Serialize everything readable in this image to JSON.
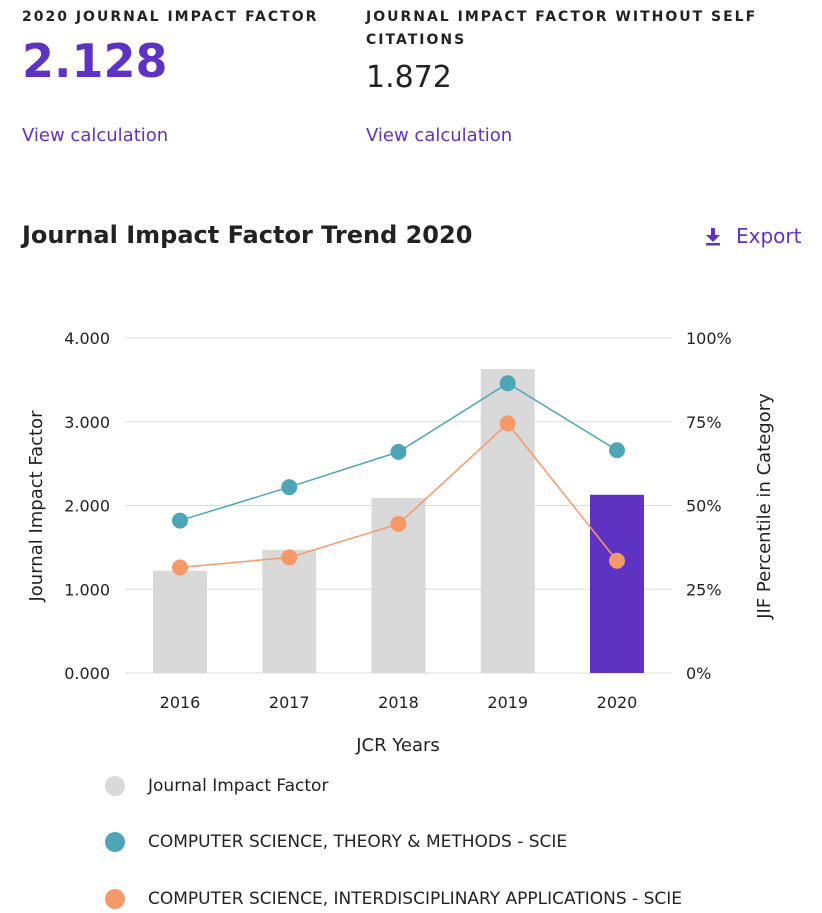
{
  "metrics": {
    "jif": {
      "label": "2020 JOURNAL IMPACT FACTOR",
      "value": "2.128",
      "link": "View calculation"
    },
    "jif_no_self": {
      "label_line1": "JOURNAL IMPACT FACTOR WITHOUT SELF",
      "label_line2": "CITATIONS",
      "value": "1.872",
      "link": "View calculation"
    }
  },
  "trend": {
    "title": "Journal Impact Factor Trend 2020",
    "export_label": "Export",
    "export_icon": "download-icon"
  },
  "colors": {
    "accent": "#5f33c2",
    "bar_default": "#d9d9d9",
    "bar_highlight": "#5f33c2",
    "series_theory": "#4fa5b8",
    "series_interdisciplinary": "#f5996b",
    "grid": "#dddddd"
  },
  "chart_data": {
    "type": "bar",
    "categories": [
      "2016",
      "2017",
      "2018",
      "2019",
      "2020"
    ],
    "xlabel": "JCR Years",
    "ylabel": "Journal Impact Factor",
    "ylabel_right": "JIF Percentile in Category",
    "ylim": [
      0,
      4
    ],
    "yticks": [
      "0.000",
      "1.000",
      "2.000",
      "3.000",
      "4.000"
    ],
    "ylim_right": [
      0,
      100
    ],
    "yticks_right": [
      "0%",
      "25%",
      "50%",
      "75%",
      "100%"
    ],
    "bars": {
      "name": "Journal Impact Factor",
      "values": [
        1.22,
        1.47,
        2.09,
        3.63,
        2.128
      ],
      "highlight_index": 4
    },
    "series": [
      {
        "name": "COMPUTER SCIENCE, THEORY & METHODS - SCIE",
        "type": "line",
        "axis": "right",
        "values": [
          45.5,
          55.5,
          66,
          86.5,
          66.5
        ]
      },
      {
        "name": "COMPUTER SCIENCE, INTERDISCIPLINARY APPLICATIONS - SCIE",
        "type": "line",
        "axis": "right",
        "values": [
          31.5,
          34.5,
          44.5,
          74.5,
          33.5
        ]
      }
    ],
    "grid": true,
    "legend_position": "bottom"
  }
}
